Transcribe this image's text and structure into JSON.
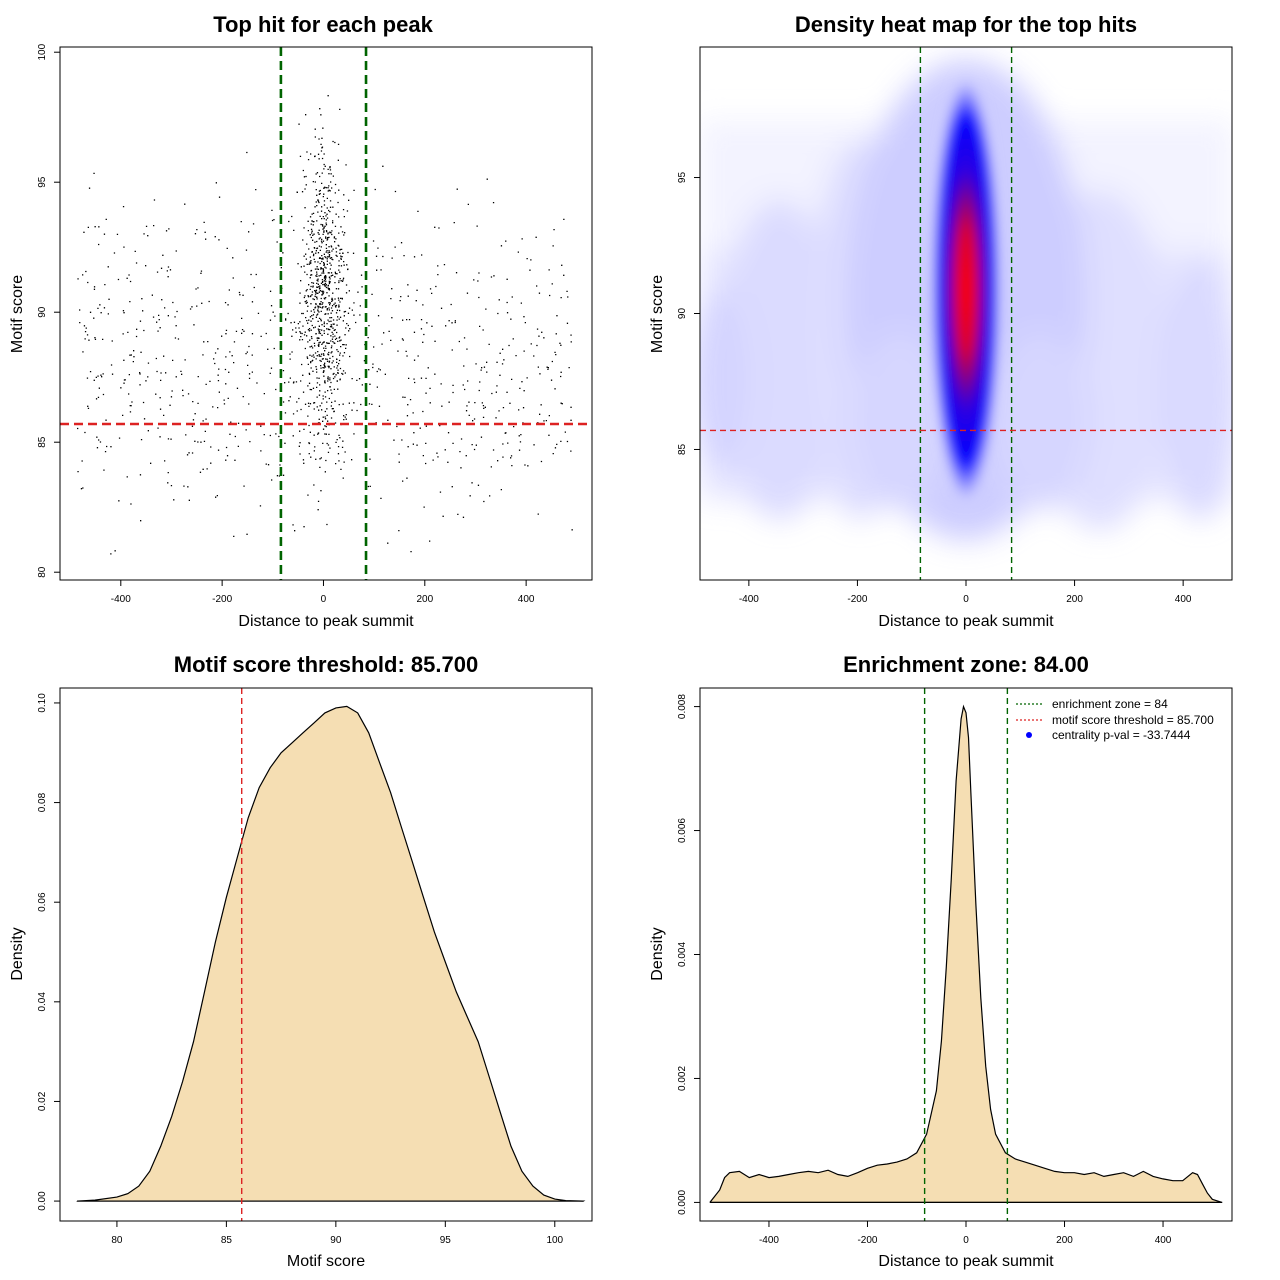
{
  "chart_data": [
    {
      "type": "scatter",
      "title": "Top hit for each peak",
      "xlabel": "Distance to peak summit",
      "ylabel": "Motif score",
      "xlim": [
        -520,
        530
      ],
      "ylim": [
        79.7,
        100.2
      ],
      "xticks": [
        "-400",
        "-200",
        "0",
        "200",
        "400"
      ],
      "yticks": [
        "80",
        "85",
        "90",
        "95",
        "100"
      ],
      "vlines": [
        -84,
        84
      ],
      "hline": 85.7,
      "n_points": 3600,
      "point_color": "#000000",
      "vline_color": "#006400",
      "hline_color": "#dd2222"
    },
    {
      "type": "heatmap",
      "title": "Density heat map for the top hits",
      "xlabel": "Distance to peak summit",
      "ylabel": "Motif score",
      "xlim": [
        -490,
        490
      ],
      "ylim": [
        80.2,
        99.8
      ],
      "xticks": [
        "-400",
        "-200",
        "0",
        "200",
        "400"
      ],
      "yticks": [
        "85",
        "90",
        "95"
      ],
      "vlines": [
        -84,
        84
      ],
      "hline": 85.7,
      "peak": {
        "x": 0,
        "y": 91
      },
      "colors": [
        "#ffffff",
        "#0000ff",
        "#ff0000"
      ]
    },
    {
      "type": "area",
      "title": "Motif score threshold: 85.700",
      "xlabel": "Motif score",
      "ylabel": "Density",
      "xlim": [
        77.4,
        101.7
      ],
      "ylim": [
        -0.004,
        0.103
      ],
      "xticks": [
        "80",
        "85",
        "90",
        "95",
        "100"
      ],
      "yticks": [
        "0.00",
        "0.02",
        "0.04",
        "0.06",
        "0.08",
        "0.10"
      ],
      "vline": 85.7,
      "x": [
        78.2,
        79,
        80,
        80.5,
        81,
        81.5,
        82,
        82.5,
        83,
        83.5,
        84,
        84.5,
        85,
        85.5,
        86,
        86.5,
        87,
        87.5,
        88,
        88.5,
        89,
        89.5,
        90,
        90.5,
        91,
        91.5,
        92,
        92.5,
        93,
        93.5,
        94,
        94.5,
        95,
        95.5,
        96,
        96.5,
        97,
        97.5,
        98,
        98.5,
        99,
        99.5,
        100,
        100.5,
        101.3
      ],
      "y": [
        0.0,
        0.0002,
        0.0008,
        0.0015,
        0.003,
        0.006,
        0.011,
        0.017,
        0.024,
        0.032,
        0.042,
        0.052,
        0.061,
        0.069,
        0.077,
        0.083,
        0.087,
        0.09,
        0.092,
        0.094,
        0.096,
        0.098,
        0.099,
        0.0993,
        0.098,
        0.094,
        0.088,
        0.082,
        0.075,
        0.068,
        0.061,
        0.054,
        0.048,
        0.042,
        0.037,
        0.032,
        0.025,
        0.018,
        0.011,
        0.006,
        0.003,
        0.0012,
        0.0004,
        0.0001,
        0.0
      ],
      "fill": "#f5deb3",
      "vline_color": "#dd2222"
    },
    {
      "type": "area",
      "title": "Enrichment zone: 84.00",
      "xlabel": "Distance to peak summit",
      "ylabel": "Density",
      "xlim": [
        -540,
        540
      ],
      "ylim": [
        -0.0003,
        0.0083
      ],
      "xticks": [
        "-400",
        "-200",
        "0",
        "200",
        "400"
      ],
      "yticks": [
        "0.000",
        "0.002",
        "0.004",
        "0.006",
        "0.008"
      ],
      "vlines": [
        -84,
        84
      ],
      "x": [
        -520,
        -500,
        -490,
        -480,
        -460,
        -440,
        -420,
        -400,
        -380,
        -360,
        -340,
        -320,
        -300,
        -280,
        -260,
        -240,
        -220,
        -200,
        -180,
        -160,
        -140,
        -120,
        -100,
        -80,
        -60,
        -50,
        -40,
        -30,
        -20,
        -10,
        -5,
        0,
        5,
        10,
        20,
        30,
        40,
        50,
        60,
        80,
        100,
        120,
        140,
        160,
        180,
        200,
        220,
        240,
        260,
        280,
        300,
        320,
        340,
        360,
        380,
        400,
        420,
        440,
        460,
        470,
        480,
        490,
        500,
        520
      ],
      "y": [
        0.0,
        0.0002,
        0.0004,
        0.00048,
        0.0005,
        0.0004,
        0.00045,
        0.0004,
        0.00042,
        0.00045,
        0.00048,
        0.0005,
        0.00048,
        0.00052,
        0.00045,
        0.00042,
        0.00048,
        0.00055,
        0.0006,
        0.00062,
        0.00065,
        0.0007,
        0.0008,
        0.0011,
        0.0018,
        0.0026,
        0.0038,
        0.0052,
        0.0068,
        0.0078,
        0.008,
        0.0079,
        0.0075,
        0.0066,
        0.0048,
        0.0033,
        0.0022,
        0.0015,
        0.0011,
        0.0008,
        0.0007,
        0.00065,
        0.0006,
        0.00055,
        0.0005,
        0.00048,
        0.00048,
        0.00045,
        0.00048,
        0.00042,
        0.00045,
        0.00048,
        0.00042,
        0.0005,
        0.00042,
        0.00038,
        0.00035,
        0.00035,
        0.00048,
        0.00045,
        0.0003,
        0.00015,
        5e-05,
        0.0
      ],
      "legend": [
        {
          "label": "enrichment zone = 84",
          "color": "#006400"
        },
        {
          "label": "motif score threshold = 85.700",
          "color": "#dd2222"
        },
        {
          "label": "centrality p-val = -33.7444",
          "color": "#0000ff"
        }
      ],
      "legend_position": "top-right",
      "fill": "#f5deb3"
    }
  ]
}
